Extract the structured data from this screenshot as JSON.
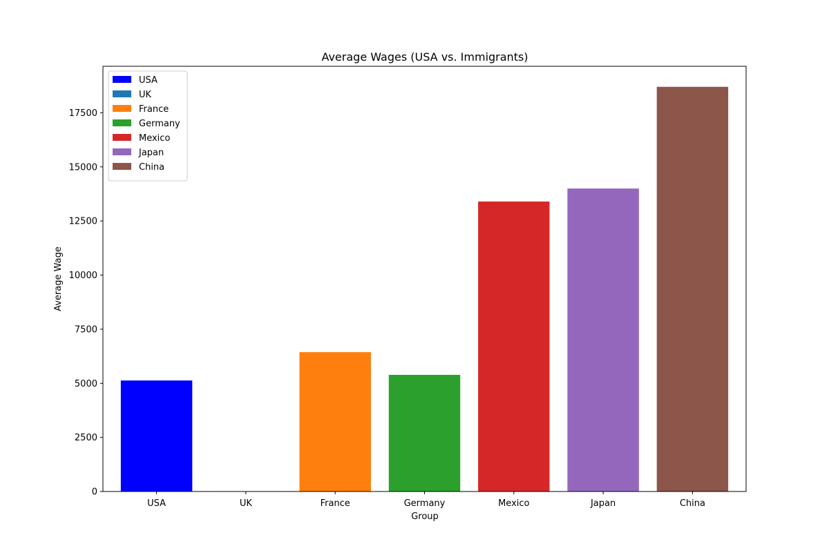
{
  "chart_data": {
    "type": "bar",
    "title": "Average Wages (USA vs. Immigrants)",
    "xlabel": "Group",
    "ylabel": "Average Wage",
    "categories": [
      "USA",
      "UK",
      "France",
      "Germany",
      "Mexico",
      "Japan",
      "China"
    ],
    "values": [
      5130,
      0,
      6440,
      5390,
      13400,
      14000,
      18700
    ],
    "colors": [
      "#0000ff",
      "#1f77b4",
      "#ff7f0e",
      "#2ca02c",
      "#d62728",
      "#9467bd",
      "#8c564b"
    ],
    "ylim": [
      0,
      19650
    ],
    "yticks": [
      0,
      2500,
      5000,
      7500,
      10000,
      12500,
      15000,
      17500
    ],
    "ytick_labels": [
      "0",
      "2500",
      "5000",
      "7500",
      "10000",
      "12500",
      "15000",
      "17500"
    ],
    "grid": false,
    "legend": {
      "placement": "top-left",
      "entries": [
        "USA",
        "UK",
        "France",
        "Germany",
        "Mexico",
        "Japan",
        "China"
      ]
    }
  }
}
